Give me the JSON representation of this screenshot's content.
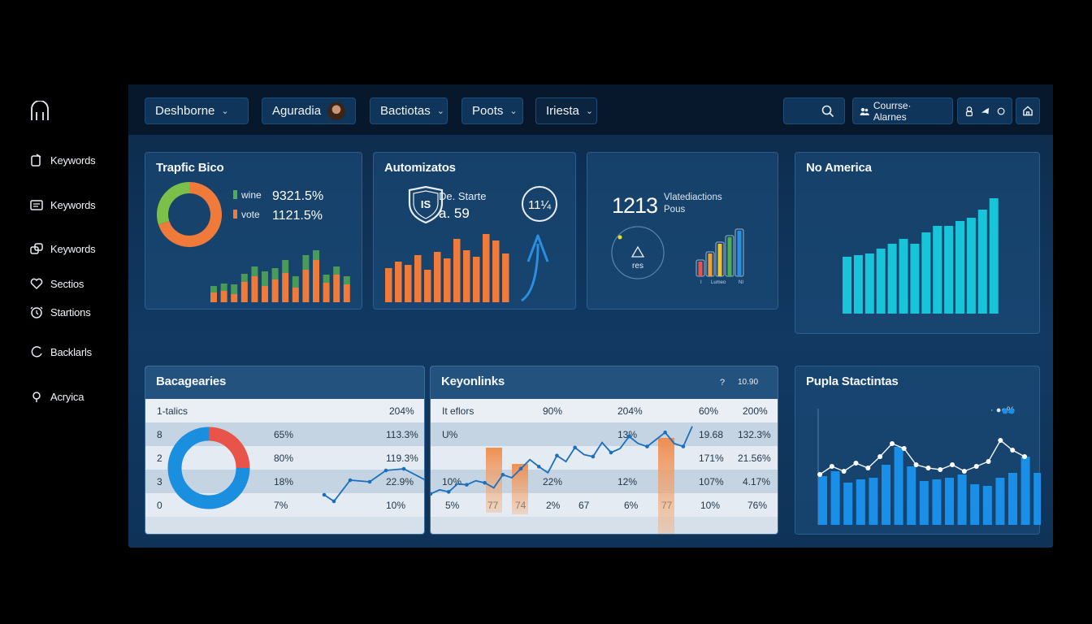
{
  "sidebar": {
    "items": [
      {
        "label": "Keywords",
        "icon": "clipboard-icon"
      },
      {
        "label": "Keywords",
        "icon": "list-icon"
      },
      {
        "label": "Keywords",
        "icon": "link-icon"
      },
      {
        "label": "Sectios",
        "icon": "heart-icon"
      },
      {
        "label": "Startions",
        "icon": "clock-icon"
      },
      {
        "label": "Backlarls",
        "icon": "circle-icon"
      },
      {
        "label": "Acryica",
        "icon": "pin-icon"
      }
    ]
  },
  "topbar": {
    "nav": [
      {
        "label": "Deshborne"
      },
      {
        "label": "Aguradia"
      },
      {
        "label": "Bactiotas"
      },
      {
        "label": "Poots"
      },
      {
        "label": "Iriesta"
      }
    ],
    "user_label": "Courrse· Alarnes"
  },
  "traffic": {
    "title": "Trapfic Bico",
    "legend": [
      {
        "name": "wine",
        "value": "9321.5%",
        "color": "#4caf50"
      },
      {
        "name": "vote",
        "value": "1121.5%",
        "color": "#f07a3a"
      }
    ],
    "donut": [
      70,
      30
    ]
  },
  "traffic_bars": {
    "stacked": [
      [
        12,
        8
      ],
      [
        14,
        9
      ],
      [
        10,
        12
      ],
      [
        25,
        10
      ],
      [
        32,
        12
      ],
      [
        20,
        18
      ],
      [
        28,
        14
      ],
      [
        36,
        16
      ],
      [
        18,
        14
      ],
      [
        40,
        18
      ],
      [
        52,
        12
      ],
      [
        24,
        10
      ],
      [
        34,
        10
      ],
      [
        22,
        10
      ]
    ]
  },
  "automation": {
    "title": "Automizatos",
    "shield_text": "IS",
    "line1": "De. Starte",
    "line2": "a. 59",
    "ring_value": "11¼",
    "bars": [
      42,
      50,
      46,
      58,
      40,
      62,
      54,
      78,
      64,
      56,
      84,
      76,
      60
    ]
  },
  "stats": {
    "big_number": "1213",
    "label1": "Vlatediactions",
    "label2": "Pous",
    "circle_label": "res",
    "mini_bars": [
      {
        "value": 18,
        "color": "#e8534a"
      },
      {
        "value": 28,
        "color": "#f0a030"
      },
      {
        "value": 40,
        "color": "#f0c030"
      },
      {
        "value": 48,
        "color": "#4caf50"
      },
      {
        "value": 56,
        "color": "#2a8fe0"
      }
    ],
    "axis_labels": [
      "I",
      "Lumeo",
      "NI"
    ]
  },
  "na": {
    "title": "No America",
    "bars": [
      70,
      72,
      74,
      80,
      86,
      92,
      86,
      100,
      108,
      108,
      114,
      118,
      128,
      142
    ]
  },
  "categories": {
    "title": "Bacagearies",
    "header": [
      "1-talics",
      "204%"
    ],
    "rows": [
      [
        "8",
        "65%",
        "113.3%"
      ],
      [
        "2",
        "80%",
        "119.3%"
      ],
      [
        "3",
        "18%",
        "22.9%"
      ],
      [
        "0",
        "7%",
        "10%"
      ]
    ],
    "donut": [
      25,
      75
    ]
  },
  "keyonlinks": {
    "title": "Keyonlinks",
    "help": "?",
    "meta": "10.90",
    "header": [
      "It eflors",
      "90%",
      "204%",
      "60%",
      "200%"
    ],
    "rows": [
      [
        "U%",
        "",
        "13%",
        "19.68",
        "132.3%"
      ],
      [
        "",
        "",
        "",
        "171%",
        "21.56%"
      ],
      [
        "10%",
        "22%",
        "12%",
        "107%",
        "4.17%"
      ],
      [
        "5%",
        "77",
        "74",
        "2%",
        "67",
        "6%",
        "77",
        "10%",
        "76%"
      ]
    ],
    "line": [
      18,
      26,
      22,
      38,
      36,
      44,
      40,
      30,
      56,
      50,
      68,
      86,
      72,
      60,
      94,
      82,
      110,
      96,
      92,
      120,
      100,
      108,
      132,
      118,
      112,
      126,
      140,
      118,
      112,
      152
    ]
  },
  "pupla": {
    "title": "Pupla Stactintas",
    "legend": "· ●●%",
    "bars": [
      60,
      66,
      52,
      56,
      58,
      74,
      96,
      72,
      54,
      56,
      58,
      62,
      50,
      48,
      58,
      64,
      84,
      64,
      78
    ],
    "line": [
      58,
      68,
      62,
      72,
      66,
      80,
      96,
      90,
      70,
      66,
      64,
      70,
      62,
      68,
      74,
      100,
      88,
      80
    ]
  }
}
